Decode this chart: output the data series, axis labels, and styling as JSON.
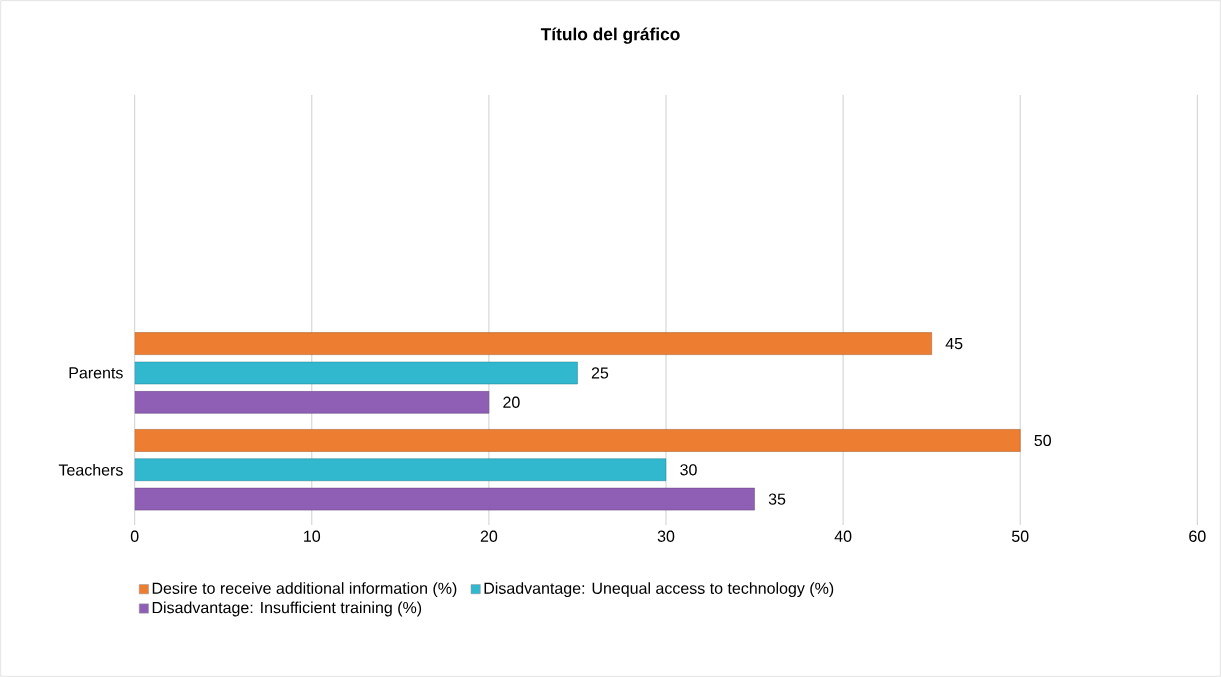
{
  "chart_data": {
    "type": "bar",
    "orientation": "horizontal",
    "title": "Título del gráfico",
    "categories": [
      "Parents",
      "Teachers"
    ],
    "series": [
      {
        "name": "Desire to receive additional information (%)",
        "color": "#ed7d31",
        "values": [
          45,
          50
        ]
      },
      {
        "name": "Disadvantage: Unequal access to technology (%)",
        "color": "#31b8cf",
        "values": [
          25,
          30
        ]
      },
      {
        "name": "Disadvantage: Insufficient training (%)",
        "color": "#8f5fb5",
        "values": [
          20,
          35
        ]
      }
    ],
    "xlim": [
      0,
      60
    ],
    "xticks": [
      0,
      10,
      20,
      30,
      40,
      50,
      60
    ],
    "grid": "x",
    "legend": "bottom",
    "data_labels": true
  }
}
